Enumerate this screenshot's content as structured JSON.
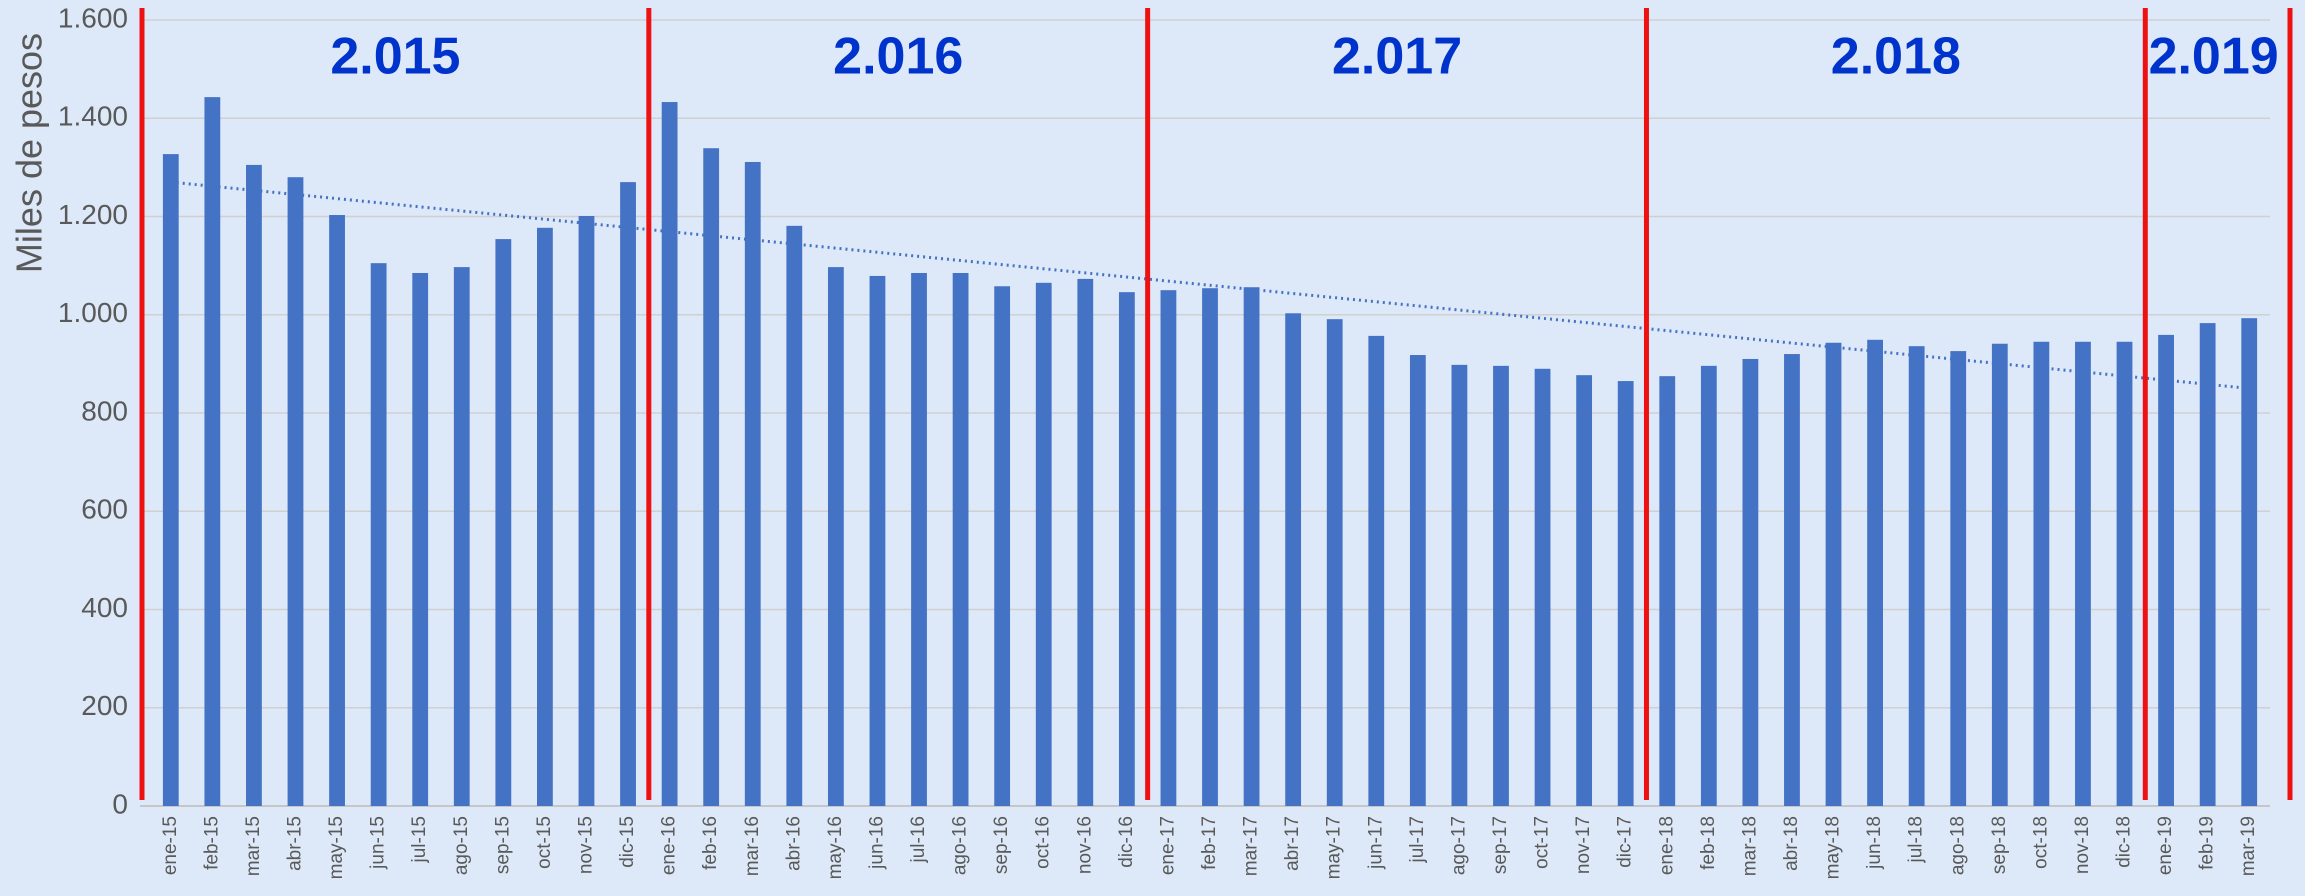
{
  "chart_data": {
    "type": "bar",
    "y_label": "Miles de pesos",
    "categories": [
      "ene-15",
      "feb-15",
      "mar-15",
      "abr-15",
      "may-15",
      "jun-15",
      "jul-15",
      "ago-15",
      "sep-15",
      "oct-15",
      "nov-15",
      "dic-15",
      "ene-16",
      "feb-16",
      "mar-16",
      "abr-16",
      "may-16",
      "jun-16",
      "jul-16",
      "ago-16",
      "sep-16",
      "oct-16",
      "nov-16",
      "dic-16",
      "ene-17",
      "feb-17",
      "mar-17",
      "abr-17",
      "may-17",
      "jun-17",
      "jul-17",
      "ago-17",
      "sep-17",
      "oct-17",
      "nov-17",
      "dic-17",
      "ene-18",
      "feb-18",
      "mar-18",
      "abr-18",
      "may-18",
      "jun-18",
      "jul-18",
      "ago-18",
      "sep-18",
      "oct-18",
      "nov-18",
      "dic-18",
      "ene-19",
      "feb-19",
      "mar-19"
    ],
    "values": [
      1327,
      1443,
      1305,
      1280,
      1203,
      1105,
      1085,
      1097,
      1154,
      1177,
      1201,
      1270,
      1433,
      1339,
      1311,
      1181,
      1097,
      1079,
      1085,
      1085,
      1058,
      1065,
      1073,
      1046,
      1050,
      1054,
      1056,
      1003,
      991,
      957,
      918,
      898,
      896,
      890,
      877,
      865,
      875,
      896,
      910,
      920,
      943,
      949,
      936,
      926,
      941,
      945,
      945,
      945,
      959,
      983,
      993
    ],
    "color": "#4472c4",
    "ylim": [
      0,
      1600
    ],
    "yticks": [
      0,
      200,
      400,
      600,
      800,
      {
        "value": 1000,
        "label": "1.000"
      },
      {
        "value": 1200,
        "label": "1.200"
      },
      {
        "value": 1400,
        "label": "1.400"
      },
      {
        "value": 1600,
        "label": "1.600"
      }
    ],
    "grid": true,
    "trendline": {
      "from": 1270,
      "to": 850,
      "color": "#4472c4"
    },
    "periods": [
      {
        "label": "2.015",
        "first": "ene-15",
        "last": "dic-15"
      },
      {
        "label": "2.016",
        "first": "ene-16",
        "last": "dic-16"
      },
      {
        "label": "2.017",
        "first": "ene-17",
        "last": "dic-17"
      },
      {
        "label": "2.018",
        "first": "ene-18",
        "last": "dic-18"
      },
      {
        "label": "2.019",
        "first": "ene-19",
        "last": "mar-19"
      }
    ],
    "period_line_color": "#ee1111",
    "period_label_color": "#0033cc"
  }
}
